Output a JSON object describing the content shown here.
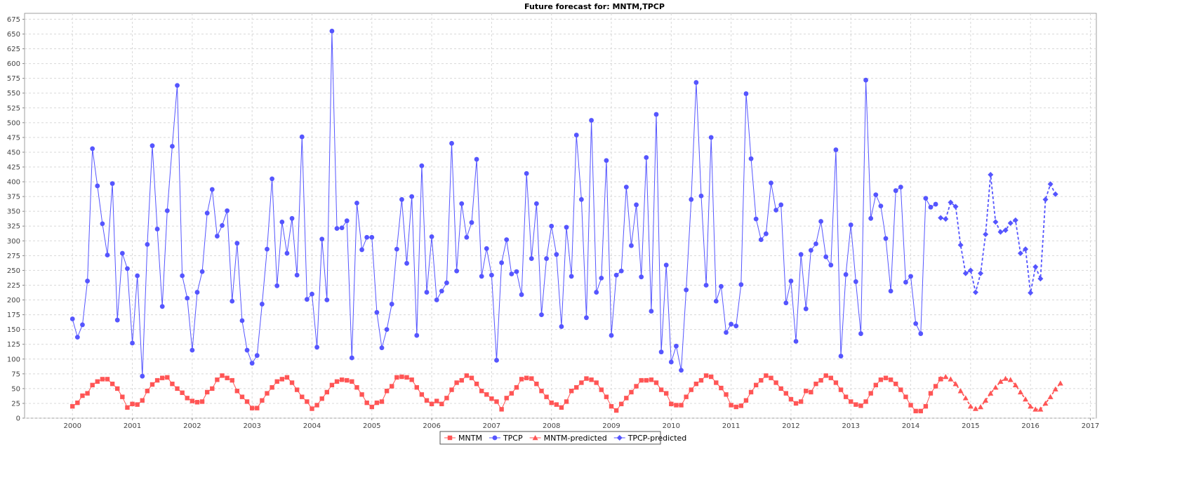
{
  "chart_data": {
    "type": "line",
    "title": "Future forecast for: MNTM,TPCP",
    "xlabel": "",
    "ylabel": "",
    "xlim": [
      1999.2,
      2017.1
    ],
    "ylim": [
      0,
      685
    ],
    "x_ticks": [
      2000,
      2001,
      2002,
      2003,
      2004,
      2005,
      2006,
      2007,
      2008,
      2009,
      2010,
      2011,
      2012,
      2013,
      2014,
      2015,
      2016,
      2017
    ],
    "y_ticks": [
      0,
      25,
      50,
      75,
      100,
      125,
      150,
      175,
      200,
      225,
      250,
      275,
      300,
      325,
      350,
      375,
      400,
      425,
      450,
      475,
      500,
      525,
      550,
      575,
      600,
      625,
      650,
      675
    ],
    "grid": true,
    "legend_position": "bottom",
    "series": [
      {
        "name": "MNTM",
        "color": "#ff5555",
        "marker": "square",
        "line": "solid",
        "start_year": 2000.0,
        "step": 0.0833333,
        "values": [
          20,
          26,
          38,
          42,
          56,
          62,
          66,
          66,
          58,
          50,
          36,
          18,
          24,
          23,
          30,
          46,
          57,
          64,
          68,
          69,
          58,
          50,
          43,
          34,
          29,
          27,
          28,
          44,
          50,
          65,
          72,
          68,
          64,
          46,
          36,
          28,
          17,
          17,
          30,
          42,
          52,
          62,
          66,
          69,
          60,
          48,
          36,
          28,
          16,
          22,
          33,
          44,
          56,
          62,
          65,
          64,
          62,
          52,
          40,
          26,
          19,
          26,
          28,
          46,
          54,
          69,
          70,
          69,
          65,
          52,
          40,
          30,
          24,
          29,
          24,
          34,
          48,
          60,
          64,
          72,
          68,
          58,
          46,
          40,
          33,
          28,
          15,
          34,
          42,
          52,
          66,
          68,
          67,
          58,
          46,
          36,
          26,
          23,
          18,
          28,
          46,
          52,
          60,
          67,
          65,
          60,
          48,
          36,
          20,
          13,
          24,
          34,
          44,
          54,
          64,
          64,
          65,
          60,
          48,
          42,
          24,
          22,
          22,
          36,
          48,
          58,
          64,
          72,
          70,
          60,
          51,
          40,
          22,
          19,
          21,
          30,
          44,
          56,
          64,
          72,
          68,
          60,
          50,
          42,
          32,
          25,
          28,
          46,
          44,
          58,
          64,
          72,
          68,
          60,
          48,
          36,
          28,
          23,
          21,
          28,
          42,
          56,
          65,
          68,
          65,
          58,
          48,
          36,
          22,
          12,
          12,
          20,
          42,
          54,
          66
        ]
      },
      {
        "name": "TPCP",
        "color": "#5555ff",
        "marker": "circle",
        "line": "solid",
        "start_year": 2000.0,
        "step": 0.0833333,
        "values": [
          168,
          137,
          158,
          232,
          456,
          393,
          329,
          276,
          397,
          166,
          279,
          253,
          127,
          241,
          71,
          294,
          461,
          320,
          189,
          351,
          460,
          563,
          241,
          203,
          115,
          213,
          248,
          347,
          387,
          308,
          326,
          351,
          198,
          296,
          165,
          115,
          93,
          106,
          193,
          286,
          405,
          224,
          332,
          279,
          338,
          242,
          476,
          201,
          210,
          120,
          303,
          200,
          655,
          321,
          322,
          334,
          102,
          364,
          285,
          306,
          306,
          179,
          119,
          150,
          193,
          286,
          370,
          262,
          375,
          140,
          427,
          213,
          307,
          200,
          215,
          229,
          465,
          249,
          363,
          306,
          331,
          438,
          240,
          287,
          242,
          98,
          263,
          302,
          244,
          248,
          209,
          414,
          270,
          363,
          175,
          270,
          325,
          277,
          155,
          323,
          240,
          479,
          370,
          170,
          504,
          213,
          237,
          436,
          140,
          242,
          249,
          391,
          292,
          361,
          239,
          441,
          181,
          514,
          112,
          259,
          95,
          122,
          81,
          217,
          370,
          568,
          376,
          225,
          475,
          198,
          223,
          145,
          159,
          156,
          226,
          549,
          439,
          337,
          302,
          312,
          398,
          352,
          361,
          195,
          232,
          130,
          277,
          185,
          284,
          295,
          333,
          273,
          259,
          454,
          105,
          243,
          327,
          231,
          143,
          572,
          338,
          378,
          359,
          304,
          215,
          385,
          391,
          230,
          240,
          160,
          143,
          372,
          357,
          362
        ]
      },
      {
        "name": "MNTM-predicted",
        "color": "#ff5555",
        "marker": "triangle",
        "line": "dashed",
        "start_year": 2014.5,
        "step": 0.0833333,
        "values": [
          67,
          70,
          66,
          58,
          46,
          34,
          20,
          16,
          19,
          30,
          42,
          52,
          62,
          67,
          65,
          56,
          44,
          32,
          20,
          15,
          15,
          25,
          36,
          49,
          59
        ]
      },
      {
        "name": "TPCP-predicted",
        "color": "#5555ff",
        "marker": "diamond",
        "line": "dashed",
        "start_year": 2014.5,
        "step": 0.0833333,
        "values": [
          339,
          337,
          365,
          358,
          293,
          245,
          250,
          213,
          245,
          311,
          412,
          332,
          315,
          318,
          330,
          335,
          279,
          286,
          212,
          256,
          236,
          370,
          396,
          379
        ]
      }
    ]
  }
}
